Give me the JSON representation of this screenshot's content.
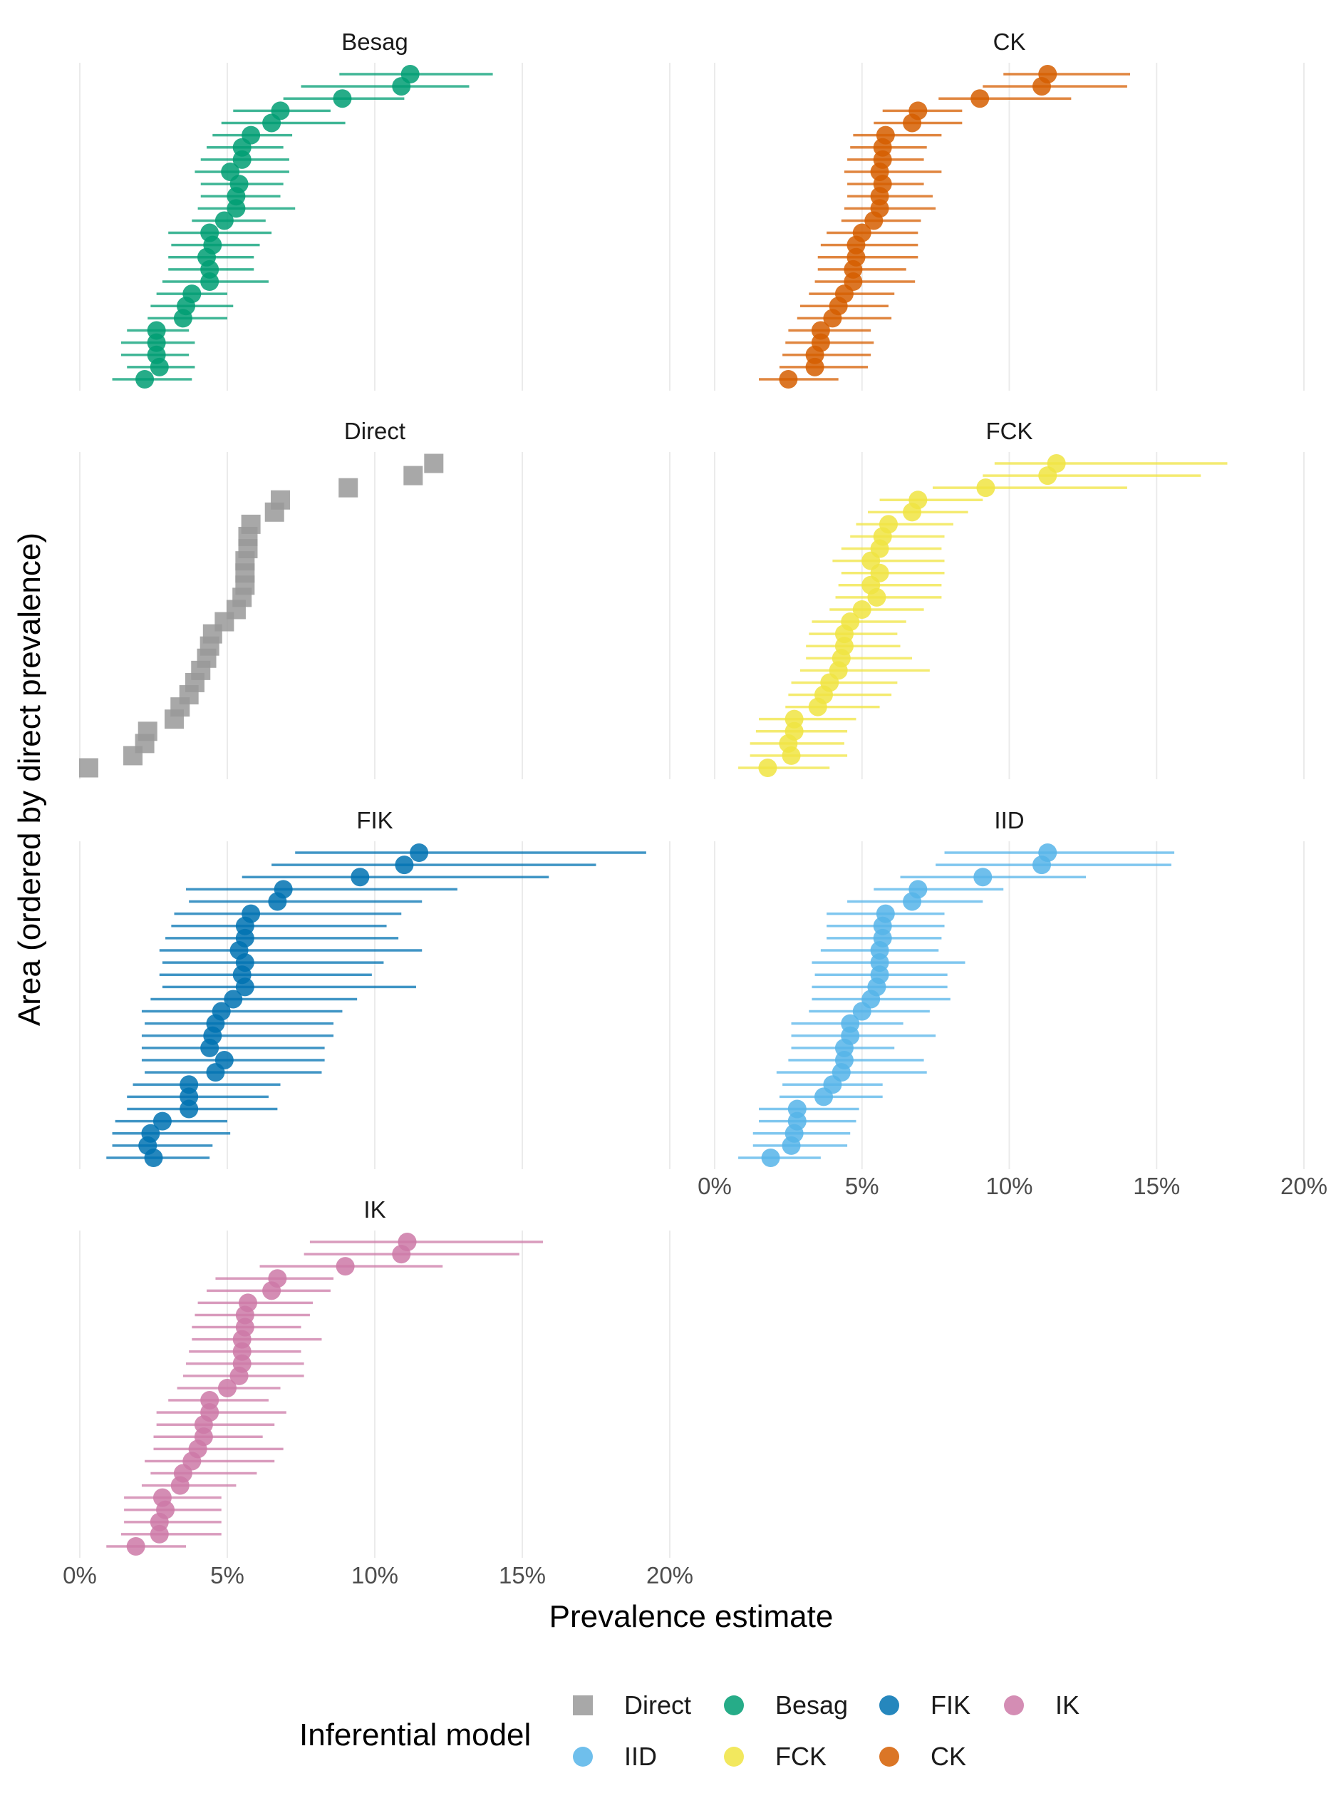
{
  "chart_data": {
    "type": "scatter",
    "subtype": "faceted dot-and-whisker",
    "xlabel": "Prevalence estimate",
    "ylabel": "Area (ordered by direct prevalence)",
    "xlim": [
      0,
      20
    ],
    "x_tick_values": [
      0,
      5,
      10,
      15,
      20
    ],
    "x_tick_labels": [
      "0%",
      "5%",
      "10%",
      "15%",
      "20%"
    ],
    "grid": "vertical major",
    "legend": {
      "title": "Inferential model",
      "position": "bottom",
      "entries": [
        {
          "name": "Direct",
          "shape": "square",
          "color": "#999999"
        },
        {
          "name": "Besag",
          "shape": "circle",
          "color": "#009E73"
        },
        {
          "name": "FIK",
          "shape": "circle",
          "color": "#0072B2"
        },
        {
          "name": "IK",
          "shape": "circle",
          "color": "#CC79A7"
        },
        {
          "name": "IID",
          "shape": "circle",
          "color": "#56B4E9"
        },
        {
          "name": "FCK",
          "shape": "circle",
          "color": "#F0E442"
        },
        {
          "name": "CK",
          "shape": "circle",
          "color": "#D55E00"
        }
      ]
    },
    "panels": [
      {
        "name": "Besag",
        "color": "#009E73",
        "shape": "circle",
        "estimate": [
          11.2,
          10.9,
          8.9,
          6.8,
          6.5,
          5.8,
          5.5,
          5.5,
          5.1,
          5.4,
          5.3,
          5.3,
          4.9,
          4.4,
          4.5,
          4.3,
          4.4,
          4.4,
          3.8,
          3.6,
          3.5,
          2.6,
          2.6,
          2.6,
          2.7,
          2.2
        ],
        "lower": [
          8.8,
          7.5,
          6.9,
          5.2,
          4.8,
          4.5,
          4.3,
          4.1,
          3.9,
          4.1,
          4.1,
          4.0,
          3.8,
          3.0,
          3.1,
          3.0,
          3.0,
          2.8,
          2.6,
          2.4,
          2.3,
          1.6,
          1.4,
          1.4,
          1.6,
          1.1
        ],
        "upper": [
          14.0,
          13.2,
          11.0,
          8.5,
          9.0,
          7.2,
          6.9,
          7.1,
          7.1,
          6.9,
          6.8,
          7.3,
          6.3,
          6.5,
          6.1,
          5.9,
          5.9,
          6.4,
          5.0,
          5.2,
          5.0,
          3.7,
          3.9,
          3.7,
          3.9,
          3.8
        ]
      },
      {
        "name": "CK",
        "color": "#D55E00",
        "shape": "circle",
        "estimate": [
          11.3,
          11.1,
          9.0,
          6.9,
          6.7,
          5.8,
          5.7,
          5.7,
          5.6,
          5.7,
          5.6,
          5.6,
          5.4,
          5.0,
          4.8,
          4.8,
          4.7,
          4.7,
          4.4,
          4.2,
          4.0,
          3.6,
          3.6,
          3.4,
          3.4,
          2.5
        ],
        "lower": [
          9.8,
          9.1,
          7.6,
          5.7,
          5.4,
          4.7,
          4.6,
          4.5,
          4.4,
          4.5,
          4.5,
          4.4,
          4.3,
          3.8,
          3.6,
          3.5,
          3.5,
          3.4,
          3.2,
          2.9,
          2.8,
          2.5,
          2.4,
          2.3,
          2.2,
          1.5
        ],
        "upper": [
          14.1,
          14.0,
          12.1,
          8.4,
          8.4,
          7.7,
          7.2,
          7.1,
          7.7,
          7.1,
          7.4,
          7.5,
          7.0,
          6.9,
          6.9,
          6.9,
          6.5,
          6.8,
          6.1,
          5.9,
          6.0,
          5.3,
          5.4,
          5.3,
          5.2,
          4.2
        ]
      },
      {
        "name": "Direct",
        "color": "#999999",
        "shape": "square",
        "estimate": [
          12.0,
          11.3,
          9.1,
          6.8,
          6.6,
          5.8,
          5.7,
          5.7,
          5.6,
          5.6,
          5.6,
          5.5,
          5.3,
          4.9,
          4.5,
          4.4,
          4.3,
          4.1,
          3.9,
          3.7,
          3.4,
          3.2,
          2.3,
          2.2,
          1.8,
          0.3
        ],
        "lower": [],
        "upper": []
      },
      {
        "name": "FCK",
        "color": "#F0E442",
        "shape": "circle",
        "estimate": [
          11.6,
          11.3,
          9.2,
          6.9,
          6.7,
          5.9,
          5.7,
          5.6,
          5.3,
          5.6,
          5.3,
          5.5,
          5.0,
          4.6,
          4.4,
          4.4,
          4.3,
          4.2,
          3.9,
          3.7,
          3.5,
          2.7,
          2.7,
          2.5,
          2.6,
          1.8
        ],
        "lower": [
          9.5,
          9.1,
          7.4,
          5.6,
          5.2,
          4.8,
          4.6,
          4.3,
          4.0,
          4.3,
          4.2,
          4.1,
          3.9,
          3.3,
          3.2,
          3.1,
          3.1,
          2.9,
          2.6,
          2.5,
          2.4,
          1.5,
          1.4,
          1.2,
          1.2,
          0.8
        ],
        "upper": [
          17.4,
          16.5,
          14.0,
          9.1,
          8.6,
          8.1,
          7.8,
          7.7,
          7.8,
          7.8,
          7.7,
          7.7,
          7.1,
          6.5,
          6.2,
          6.3,
          6.7,
          7.3,
          6.2,
          6.0,
          5.6,
          4.8,
          4.5,
          4.4,
          4.5,
          3.9
        ]
      },
      {
        "name": "FIK",
        "color": "#0072B2",
        "shape": "circle",
        "estimate": [
          11.5,
          11.0,
          9.5,
          6.9,
          6.7,
          5.8,
          5.6,
          5.6,
          5.4,
          5.6,
          5.5,
          5.6,
          5.2,
          4.8,
          4.6,
          4.5,
          4.4,
          4.9,
          4.6,
          3.7,
          3.7,
          3.7,
          2.8,
          2.4,
          2.3,
          2.5
        ],
        "lower": [
          7.3,
          6.5,
          5.5,
          3.6,
          3.7,
          3.2,
          3.1,
          2.9,
          2.7,
          2.8,
          2.7,
          2.8,
          2.4,
          2.1,
          2.2,
          2.1,
          2.1,
          2.1,
          2.2,
          1.8,
          1.6,
          1.6,
          1.2,
          1.1,
          1.1,
          0.9
        ],
        "upper": [
          19.2,
          17.5,
          15.9,
          12.8,
          11.6,
          10.9,
          10.4,
          10.8,
          11.6,
          10.3,
          9.9,
          11.4,
          9.4,
          8.9,
          8.6,
          8.6,
          8.3,
          8.3,
          8.2,
          6.8,
          6.4,
          6.7,
          5.0,
          5.1,
          4.5,
          4.4
        ]
      },
      {
        "name": "IID",
        "color": "#56B4E9",
        "shape": "circle",
        "estimate": [
          11.3,
          11.1,
          9.1,
          6.9,
          6.7,
          5.8,
          5.7,
          5.7,
          5.6,
          5.6,
          5.6,
          5.5,
          5.3,
          5.0,
          4.6,
          4.6,
          4.4,
          4.4,
          4.3,
          4.0,
          3.7,
          2.8,
          2.8,
          2.7,
          2.6,
          1.9
        ],
        "lower": [
          7.8,
          7.5,
          6.3,
          5.4,
          4.5,
          3.8,
          3.8,
          3.8,
          3.6,
          3.3,
          3.4,
          3.3,
          3.3,
          3.2,
          2.6,
          2.6,
          2.6,
          2.5,
          2.1,
          2.3,
          2.2,
          1.5,
          1.5,
          1.3,
          1.3,
          0.8
        ],
        "upper": [
          15.6,
          15.5,
          12.6,
          9.8,
          9.1,
          7.8,
          7.8,
          7.7,
          7.6,
          8.5,
          7.9,
          7.9,
          8.0,
          7.3,
          6.4,
          7.5,
          6.1,
          7.1,
          7.2,
          5.7,
          5.7,
          4.9,
          4.8,
          4.6,
          4.5,
          3.6
        ]
      },
      {
        "name": "IK",
        "color": "#CC79A7",
        "shape": "circle",
        "estimate": [
          11.1,
          10.9,
          9.0,
          6.7,
          6.5,
          5.7,
          5.6,
          5.6,
          5.5,
          5.5,
          5.5,
          5.4,
          5.0,
          4.4,
          4.4,
          4.2,
          4.2,
          4.0,
          3.8,
          3.5,
          3.4,
          2.8,
          2.9,
          2.7,
          2.7,
          1.9
        ],
        "lower": [
          7.8,
          7.6,
          6.1,
          4.6,
          4.3,
          4.0,
          3.9,
          3.8,
          3.8,
          3.7,
          3.6,
          3.5,
          3.3,
          3.0,
          2.6,
          2.6,
          2.5,
          2.5,
          2.2,
          2.4,
          2.1,
          1.5,
          1.5,
          1.5,
          1.4,
          0.9
        ],
        "upper": [
          15.7,
          14.9,
          12.3,
          8.6,
          8.5,
          7.9,
          7.8,
          7.5,
          8.2,
          7.5,
          7.6,
          7.6,
          6.8,
          6.4,
          7.0,
          6.6,
          6.2,
          6.9,
          6.6,
          6.0,
          5.3,
          4.8,
          4.8,
          4.8,
          4.8,
          3.6
        ]
      }
    ]
  }
}
